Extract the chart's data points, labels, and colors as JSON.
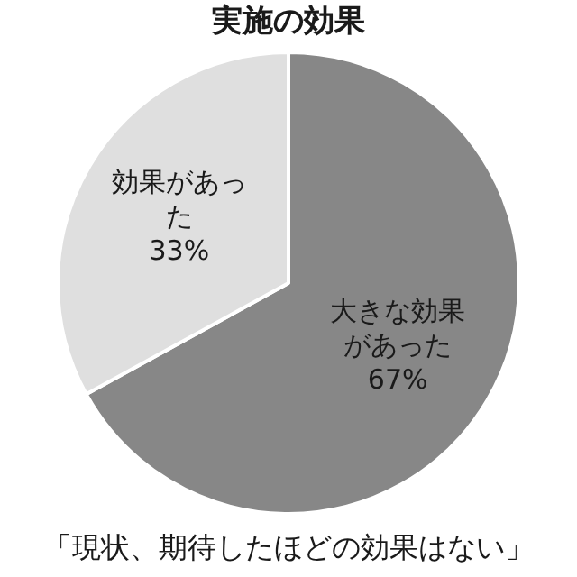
{
  "chart_data": {
    "type": "pie",
    "title": "実施の効果",
    "categories": [
      "大きな効果があった",
      "効果があった"
    ],
    "values": [
      67,
      33
    ],
    "colors": [
      "#878787",
      "#dfdfdf"
    ],
    "value_labels": [
      "67%",
      "33%"
    ],
    "legend": false,
    "annotations": [
      "「現状、期待したほどの効果はない」"
    ]
  }
}
